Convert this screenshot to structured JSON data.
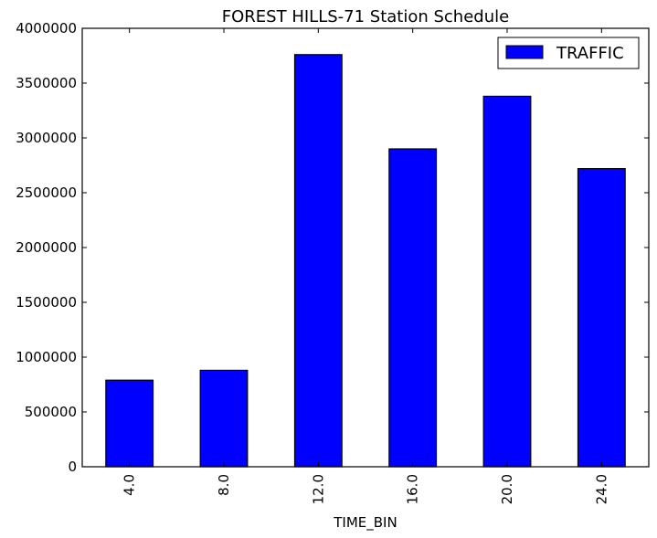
{
  "chart_data": {
    "type": "bar",
    "title": "FOREST HILLS-71 Station Schedule",
    "xlabel": "TIME_BIN",
    "ylabel": "",
    "categories": [
      "4.0",
      "8.0",
      "12.0",
      "16.0",
      "20.0",
      "24.0"
    ],
    "series": [
      {
        "name": "TRAFFIC",
        "values": [
          790000,
          880000,
          3760000,
          2900000,
          3380000,
          2720000
        ],
        "color": "#0000ff"
      }
    ],
    "ylim": [
      0,
      4000000
    ],
    "yticks": [
      0,
      500000,
      1000000,
      1500000,
      2000000,
      2500000,
      3000000,
      3500000,
      4000000
    ],
    "ytick_labels": [
      "0",
      "500000",
      "1000000",
      "1500000",
      "2000000",
      "2500000",
      "3000000",
      "3500000",
      "4000000"
    ],
    "grid": false,
    "legend_position": "top-right",
    "bar_edge_color": "#000000"
  }
}
